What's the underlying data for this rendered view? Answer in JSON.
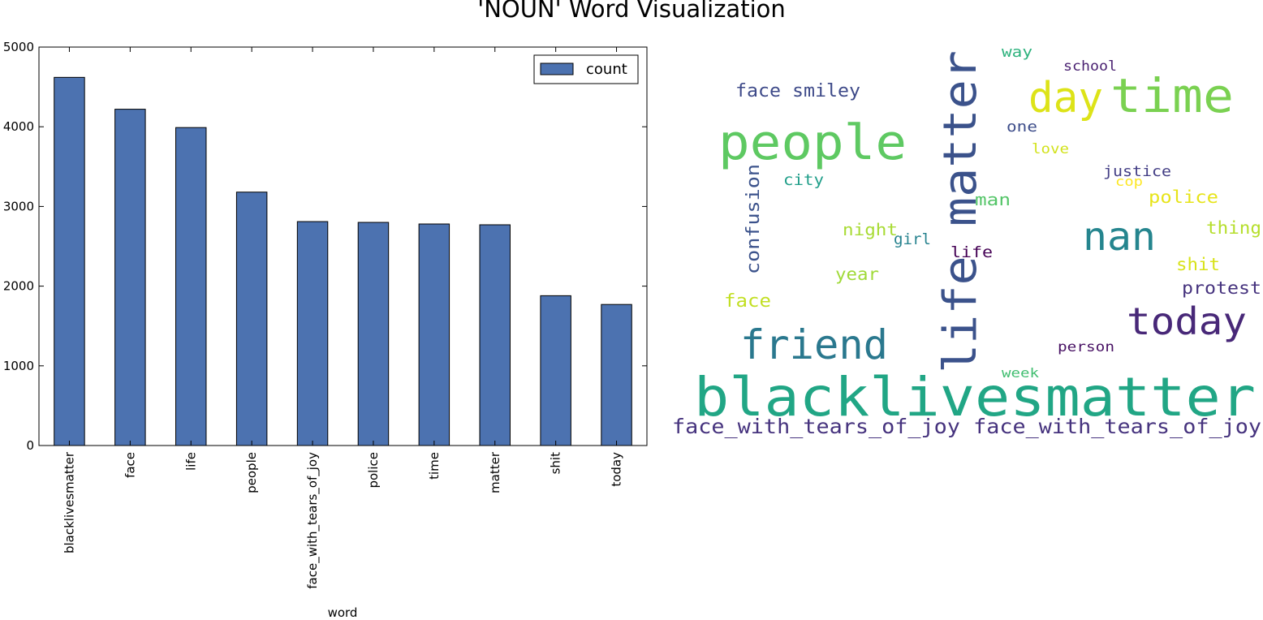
{
  "title": "'NOUN' Word Visualization",
  "chart_data": {
    "type": "bar",
    "categories": [
      "blacklivesmatter",
      "face",
      "life",
      "people",
      "face_with_tears_of_joy",
      "police",
      "time",
      "matter",
      "shit",
      "today"
    ],
    "series": [
      {
        "name": "count",
        "values": [
          4620,
          4220,
          3990,
          3180,
          2810,
          2800,
          2780,
          2770,
          1880,
          1770
        ],
        "color": "#4c72b0"
      }
    ],
    "xlabel": "word",
    "ylabel": "",
    "ylim": [
      0,
      5000
    ],
    "yticks": [
      0,
      1000,
      2000,
      3000,
      4000,
      5000
    ],
    "legend": {
      "label": "count",
      "placement": "top-right"
    },
    "grid": false
  },
  "wordcloud": {
    "words": [
      {
        "text": "blacklivesmatter",
        "color": "#21a685"
      },
      {
        "text": "life matter",
        "color": "#3b528b"
      },
      {
        "text": "people",
        "color": "#5ec962"
      },
      {
        "text": "time",
        "color": "#7ad151"
      },
      {
        "text": "day",
        "color": "#dde318"
      },
      {
        "text": "friend",
        "color": "#2a788e"
      },
      {
        "text": "today",
        "color": "#482878"
      },
      {
        "text": "nan",
        "color": "#25858e"
      },
      {
        "text": "face_with_tears_of_joy face_with_tears_of_joy",
        "color": "#46337e"
      },
      {
        "text": "face smiley",
        "color": "#3e4a89"
      },
      {
        "text": "confusion",
        "color": "#3b528b"
      },
      {
        "text": "police",
        "color": "#e7e419"
      },
      {
        "text": "thing",
        "color": "#b5de2b"
      },
      {
        "text": "protest",
        "color": "#46337e"
      },
      {
        "text": "shit",
        "color": "#d8e219"
      },
      {
        "text": "face",
        "color": "#c2df23"
      },
      {
        "text": "year",
        "color": "#a0da39"
      },
      {
        "text": "night",
        "color": "#a8db34"
      },
      {
        "text": "girl",
        "color": "#26828e"
      },
      {
        "text": "man",
        "color": "#54c568"
      },
      {
        "text": "life",
        "color": "#440154"
      },
      {
        "text": "city",
        "color": "#1f9e89"
      },
      {
        "text": "justice",
        "color": "#433e85"
      },
      {
        "text": "cop",
        "color": "#fde725"
      },
      {
        "text": "love",
        "color": "#d2e21b"
      },
      {
        "text": "one",
        "color": "#3d4d8a"
      },
      {
        "text": "school",
        "color": "#481f70"
      },
      {
        "text": "way",
        "color": "#2db27d"
      },
      {
        "text": "person",
        "color": "#471063"
      },
      {
        "text": "week",
        "color": "#42be71"
      }
    ]
  }
}
